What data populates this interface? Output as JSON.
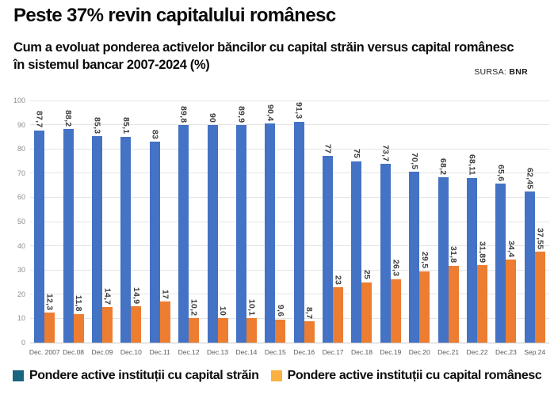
{
  "header": {
    "title": "Peste 37% revin capitalului românesc",
    "subtitle": "Cum a evoluat ponderea activelor băncilor cu capital străin versus capital românesc în sistemul bancar 2007-2024 (%)",
    "source_label": "SURSA:",
    "source_value": "BNR"
  },
  "chart_data": {
    "type": "bar",
    "title": "Cum a evoluat ponderea activelor băncilor cu capital străin versus capital românesc în sistemul bancar 2007-2024 (%)",
    "categories": [
      "Dec. 2007",
      "Dec.08",
      "Dec.09",
      "Dec.10",
      "Dec.11",
      "Dec.12",
      "Dec.13",
      "Dec.14",
      "Dec.15",
      "Dec.16",
      "Dec.17",
      "Dec.18",
      "Dec.19",
      "Dec.20",
      "Dec.21",
      "Dec.22",
      "Dec.23",
      "Sep.24"
    ],
    "series": [
      {
        "name": "Pondere active instituții cu capital străin",
        "bar_color": "#4472c4",
        "legend_color": "#1a6580",
        "values": [
          87.7,
          88.2,
          85.3,
          85.1,
          83,
          89.8,
          90,
          89.9,
          90.4,
          91.3,
          77,
          75,
          73.7,
          70.5,
          68.2,
          68.11,
          65.6,
          62.45
        ]
      },
      {
        "name": "Pondere active instituții cu capital românesc",
        "bar_color": "#ed7d31",
        "legend_color": "#fbb042",
        "values": [
          12.3,
          11.8,
          14.7,
          14.9,
          17,
          10.2,
          10,
          10.1,
          9.6,
          8.7,
          23,
          25,
          26.3,
          29.5,
          31.8,
          31.89,
          34.4,
          37.55
        ]
      }
    ],
    "decimal_separator": ",",
    "xlabel": "",
    "ylabel": "",
    "ylim": [
      0,
      100
    ],
    "yticks": [
      0,
      10,
      20,
      30,
      40,
      50,
      60,
      70,
      80,
      90,
      100
    ],
    "grid": true,
    "legend_position": "bottom"
  }
}
